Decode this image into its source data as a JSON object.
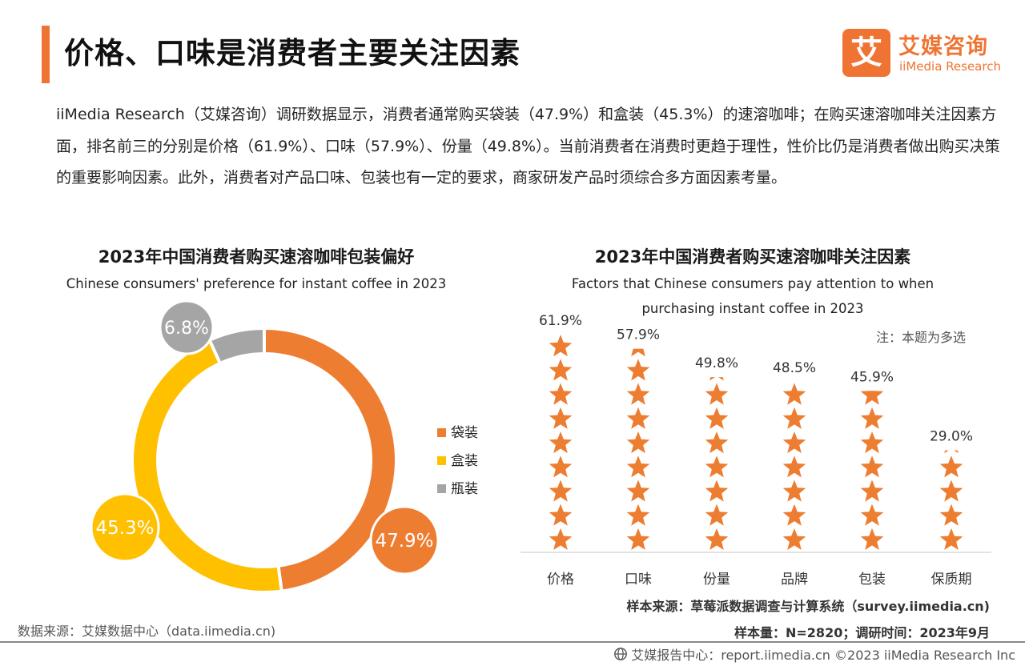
{
  "header": {
    "title": "价格、口味是消费者主要关注因素",
    "logo_badge": "艾",
    "logo_cn": "艾媒咨询",
    "logo_en": "iiMedia Research"
  },
  "summary": {
    "text": "iiMedia Research（艾媒咨询）调研数据显示，消费者通常购买袋装（47.9%）和盒装（45.3%）的速溶咖啡；在购买速溶咖啡关注因素方面，排名前三的分别是价格（61.9%）、口味（57.9%）、份量（49.8%）。当前消费者在消费时更趋于理性，性价比仍是消费者做出购买决策的重要影响因素。此外，消费者对产品口味、包装也有一定的要求，商家研发产品时须综合多方面因素考量。"
  },
  "left": {
    "title": "2023年中国消费者购买速溶咖啡包装偏好",
    "subtitle": "Chinese consumers' preference for instant coffee in 2023",
    "source": "数据来源：艾媒数据中心（data.iimedia.cn)"
  },
  "right": {
    "title": "2023年中国消费者购买速溶咖啡关注因素",
    "subtitle": "Factors that Chinese consumers pay attention to when purchasing instant coffee in 2023",
    "note": "注：本题为多选",
    "source_line1": "样本来源：草莓派数据调查与计算系统（survey.iimedia.cn)",
    "source_line2": "样本量：N=2820；调研时间：2023年9月"
  },
  "footer": {
    "text": "艾媒报告中心：report.iimedia.cn  ©2023  iiMedia Research  Inc",
    "icon": "globe-icon"
  },
  "colors": {
    "accent": "#ef7433",
    "bag": "#ed7d31",
    "box": "#ffc000",
    "bottle": "#a5a5a5",
    "star": "#ed7d31"
  },
  "chart_data": [
    {
      "type": "pie",
      "variant": "donut",
      "categories": [
        "袋装",
        "盒装",
        "瓶装"
      ],
      "values": [
        47.9,
        45.3,
        6.8
      ],
      "labels": [
        "47.9%",
        "45.3%",
        "6.8%"
      ],
      "legend": "right",
      "colors": [
        "#ed7d31",
        "#ffc000",
        "#a5a5a5"
      ]
    },
    {
      "type": "bar",
      "variant": "pictograph-stars",
      "categories": [
        "价格",
        "口味",
        "份量",
        "品牌",
        "包装",
        "保质期"
      ],
      "values": [
        61.9,
        57.9,
        49.8,
        48.5,
        45.9,
        29.0
      ],
      "labels": [
        "61.9%",
        "57.9%",
        "49.8%",
        "48.5%",
        "45.9%",
        "29.0%"
      ],
      "ylim": [
        0,
        61.9
      ],
      "grid": false
    }
  ]
}
